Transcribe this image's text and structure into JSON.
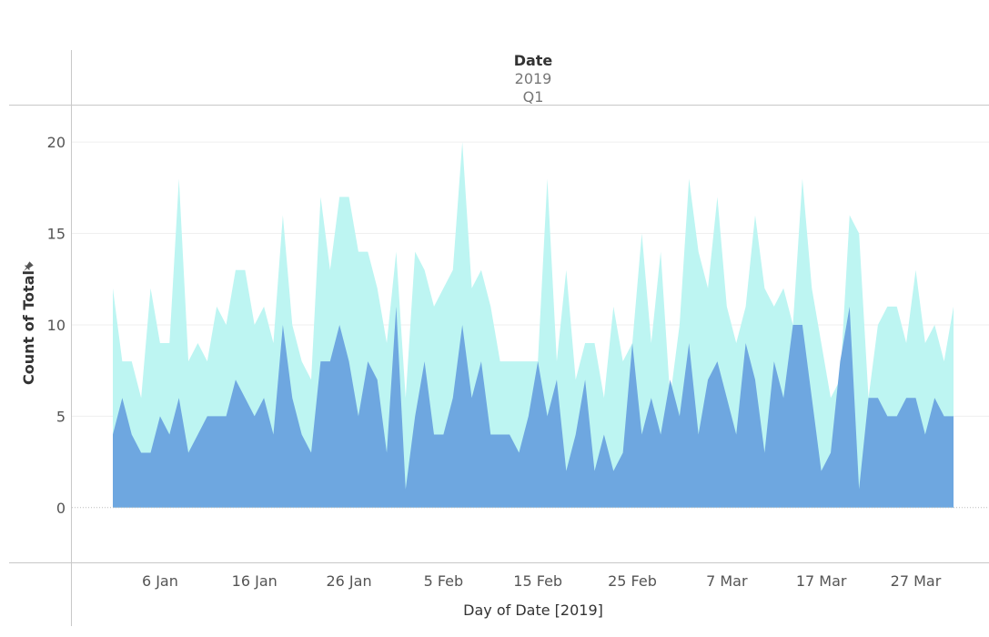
{
  "header": {
    "title": "Date",
    "year": "2019",
    "quarter": "Q1"
  },
  "chart_data": {
    "type": "area",
    "x_start": "2019-01-01",
    "x_end": "2019-03-31",
    "xlabel": "Day of Date [2019]",
    "ylabel": "Count of Total",
    "ylim": [
      -3,
      22
    ],
    "y_ticks": [
      0,
      5,
      10,
      15,
      20
    ],
    "x_ticks": [
      {
        "date": "2019-01-06",
        "label": "6 Jan"
      },
      {
        "date": "2019-01-16",
        "label": "16 Jan"
      },
      {
        "date": "2019-01-26",
        "label": "26 Jan"
      },
      {
        "date": "2019-02-05",
        "label": "5 Feb"
      },
      {
        "date": "2019-02-15",
        "label": "15 Feb"
      },
      {
        "date": "2019-02-25",
        "label": "25 Feb"
      },
      {
        "date": "2019-03-07",
        "label": "7 Mar"
      },
      {
        "date": "2019-03-17",
        "label": "17 Mar"
      },
      {
        "date": "2019-03-27",
        "label": "27 Mar"
      }
    ],
    "grid": true,
    "series": [
      {
        "color": "#bdf5f2",
        "values": [
          12,
          8,
          8,
          6,
          12,
          9,
          9,
          18,
          8,
          9,
          8,
          11,
          10,
          13,
          13,
          10,
          11,
          9,
          16,
          10,
          8,
          7,
          17,
          13,
          17,
          17,
          14,
          14,
          12,
          9,
          14,
          6,
          14,
          13,
          11,
          12,
          13,
          20,
          12,
          13,
          11,
          8,
          8,
          8,
          8,
          8,
          18,
          8,
          13,
          7,
          9,
          9,
          6,
          11,
          8,
          9,
          15,
          9,
          14,
          6,
          10,
          18,
          14,
          12,
          17,
          11,
          9,
          11,
          16,
          12,
          11,
          12,
          10,
          18,
          12,
          9,
          6,
          7,
          16,
          15,
          6,
          10,
          11,
          11,
          9,
          13,
          9,
          10,
          8,
          11
        ]
      },
      {
        "color": "#6ea7e0",
        "values": [
          4,
          6,
          4,
          3,
          3,
          5,
          4,
          6,
          3,
          4,
          5,
          5,
          5,
          7,
          6,
          5,
          6,
          4,
          10,
          6,
          4,
          3,
          8,
          8,
          10,
          8,
          5,
          8,
          7,
          3,
          11,
          1,
          5,
          8,
          4,
          4,
          6,
          10,
          6,
          8,
          4,
          4,
          4,
          3,
          5,
          8,
          5,
          7,
          2,
          4,
          7,
          2,
          4,
          2,
          3,
          9,
          4,
          6,
          4,
          7,
          5,
          9,
          4,
          7,
          8,
          6,
          4,
          9,
          7,
          3,
          8,
          6,
          10,
          10,
          6,
          2,
          3,
          8,
          11,
          1,
          6,
          6,
          5,
          5,
          6,
          6,
          4,
          6,
          5,
          5
        ]
      }
    ]
  }
}
